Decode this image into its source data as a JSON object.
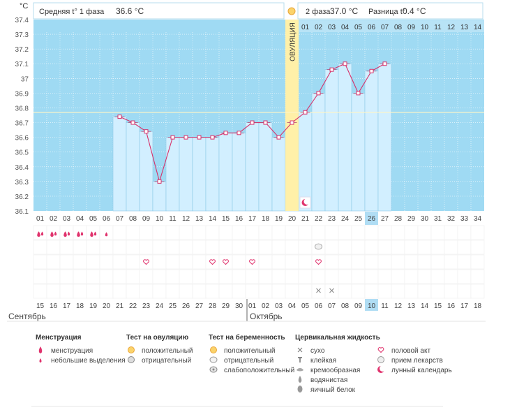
{
  "header": {
    "unit": "°C",
    "phase1_label": "Средняя t° 1 фаза",
    "phase1_value": "36.6 °C",
    "phase2_label": "2 фаза",
    "phase2_value": "37.0 °C",
    "diff_label": "Разница t°",
    "diff_value": "0.4 °C",
    "ovulation_label": "ОВУЛЯЦИЯ"
  },
  "chart_data": {
    "type": "line",
    "ylim": [
      36.1,
      37.4
    ],
    "yticks": [
      "36.1",
      "36.2",
      "36.3",
      "36.4",
      "36.5",
      "36.6",
      "36.7",
      "36.8",
      "36.9",
      "37",
      "37.1",
      "37.2",
      "37.3",
      "37.4"
    ],
    "cycle_days": [
      "01",
      "02",
      "03",
      "04",
      "05",
      "06",
      "07",
      "08",
      "09",
      "10",
      "11",
      "12",
      "13",
      "14",
      "15",
      "16",
      "17",
      "18",
      "19",
      "20",
      "21",
      "22",
      "23",
      "24",
      "25",
      "26",
      "27",
      "28",
      "29",
      "30",
      "31",
      "32",
      "33",
      "34"
    ],
    "temperatures": [
      null,
      null,
      null,
      null,
      null,
      null,
      36.74,
      36.7,
      36.64,
      36.3,
      36.6,
      36.6,
      36.6,
      36.6,
      36.63,
      36.63,
      36.7,
      36.7,
      36.6,
      36.7,
      36.77,
      36.9,
      37.06,
      37.1,
      36.9,
      37.05,
      37.1,
      null,
      null,
      null,
      null,
      null,
      null,
      null
    ],
    "coverline": 36.77,
    "ovulation_day": 20,
    "current_day": 26,
    "phase2_days": [
      "01",
      "02",
      "03",
      "04",
      "05",
      "06",
      "07",
      "08",
      "09",
      "10",
      "11",
      "12",
      "13",
      "14"
    ],
    "phase2_start_day": 21,
    "calendar_dates": [
      "15",
      "16",
      "17",
      "18",
      "19",
      "20",
      "21",
      "22",
      "23",
      "24",
      "25",
      "26",
      "27",
      "28",
      "29",
      "30",
      "01",
      "02",
      "03",
      "04",
      "05",
      "06",
      "07",
      "08",
      "09",
      "10",
      "11",
      "12",
      "13",
      "14",
      "15",
      "16",
      "17",
      "18"
    ],
    "weekend_days": [
      1,
      7,
      8,
      14,
      15,
      21,
      22,
      28,
      29
    ],
    "months": [
      {
        "label": "Сентябрь",
        "start_day": 1
      },
      {
        "label": "Октябрь",
        "start_day": 17
      }
    ],
    "menstruation_days": [
      1,
      2,
      3,
      4,
      5
    ],
    "spotting_days": [
      6
    ],
    "love_days": [
      9,
      14,
      15,
      17,
      22
    ],
    "pregnancy_test_days": [
      22
    ],
    "dry_days": [
      22,
      23
    ],
    "lunar_day": 21
  },
  "legend": [
    {
      "title": "Менструация",
      "items": [
        {
          "icon": "drop-icon",
          "label": "менструация"
        },
        {
          "icon": "small-drop-icon",
          "label": "небольшие выделения"
        }
      ]
    },
    {
      "title": "Тест на овуляцию",
      "items": [
        {
          "icon": "sun-icon",
          "label": "положительный"
        },
        {
          "icon": "gray-sun-icon",
          "label": "отрицательный"
        }
      ]
    },
    {
      "title": "Тест на беременность",
      "items": [
        {
          "icon": "sun-icon",
          "label": "положительный"
        },
        {
          "icon": "cloud-icon",
          "label": "отрицательный"
        },
        {
          "icon": "weak-cloud-icon",
          "label": "слабоположительный"
        }
      ]
    },
    {
      "title": "Цервикальная жидкость",
      "items": [
        {
          "icon": "cross-icon",
          "label": "сухо"
        },
        {
          "icon": "t-icon",
          "label": "клейкая"
        },
        {
          "icon": "cream-icon",
          "label": "кремообразная"
        },
        {
          "icon": "water-drop-icon",
          "label": "водянистая"
        },
        {
          "icon": "egg-white-icon",
          "label": "яичный белок"
        }
      ]
    },
    {
      "title": "",
      "items": [
        {
          "icon": "heart-icon",
          "label": "половой акт"
        },
        {
          "icon": "pill-icon",
          "label": "прием лекарств"
        },
        {
          "icon": "moon-icon",
          "label": "лунный календарь"
        }
      ]
    }
  ],
  "colors": {
    "sky": "#9fdaf3",
    "bar": "#d2efff",
    "bar_border": "#8cc8e6",
    "line": "#d7306a",
    "ovulation": "#fff0a8",
    "current": "#b0ddf4",
    "weekend": "#d7306a",
    "grid": "#ffffff"
  }
}
